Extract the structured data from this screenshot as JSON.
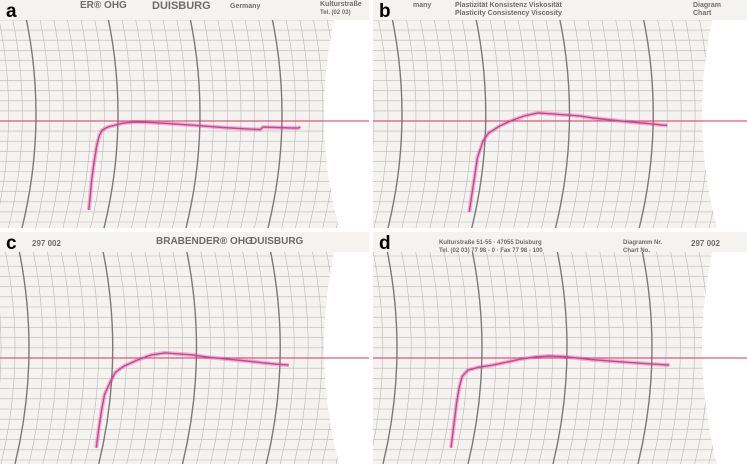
{
  "colors": {
    "paper": "#f4f3f0",
    "grid": "#b9b9b9",
    "grid_major": "#7a7a7a",
    "reference": "#e0305a",
    "trace": "#d43f93",
    "header_text": "#6d6d6d"
  },
  "panels": [
    {
      "label": "a",
      "header": [
        {
          "text": "ER® OHG"
        },
        {
          "text": "DUISBURG"
        },
        {
          "text": "Germany"
        },
        {
          "text": "Kulturstraße"
        },
        {
          "text": "Tel. (02 03)"
        }
      ],
      "chart_data": {
        "type": "line",
        "title": "",
        "xlabel": "",
        "ylabel": "",
        "xlim": [
          0,
          100
        ],
        "ylim": [
          0,
          1000
        ],
        "reference_line": 500,
        "series": [
          {
            "x": [
              10,
              10.5,
              11,
              12,
              13,
              14,
              15,
              17,
              20,
              23,
              27,
              33,
              40,
              50,
              60,
              70,
              74,
              75,
              80,
              85,
              88,
              89
            ],
            "y": [
              60,
              120,
              200,
              300,
              380,
              430,
              455,
              470,
              480,
              490,
              495,
              493,
              487,
              478,
              468,
              460,
              458,
              470,
              468,
              466,
              465,
              470
            ]
          }
        ]
      }
    },
    {
      "label": "b",
      "header": [
        {
          "text": "many"
        },
        {
          "text": "Plastizität  Konsistenz  Viskosität"
        },
        {
          "text": "Plasticity  Consistency  Viscosity"
        },
        {
          "text": "Diagram"
        },
        {
          "text": "Chart"
        }
      ],
      "chart_data": {
        "type": "line",
        "title": "",
        "xlabel": "",
        "ylabel": "",
        "xlim": [
          0,
          100
        ],
        "ylim": [
          0,
          1000
        ],
        "reference_line": 500,
        "series": [
          {
            "x": [
              15,
              16,
              17,
              18,
              20,
              22,
              26,
              30,
              35,
              40,
              45,
              50,
              55,
              60,
              70,
              80,
              85,
              87
            ],
            "y": [
              50,
              140,
              230,
              320,
              400,
              440,
              475,
              500,
              525,
              540,
              535,
              530,
              525,
              515,
              500,
              487,
              480,
              478
            ]
          }
        ]
      }
    },
    {
      "label": "c",
      "header": [
        {
          "text": "297 002"
        },
        {
          "text": "BRABENDER® OHG"
        },
        {
          "text": "DUISBURG"
        }
      ],
      "chart_data": {
        "type": "line",
        "title": "",
        "xlabel": "",
        "ylabel": "",
        "xlim": [
          0,
          100
        ],
        "ylim": [
          0,
          1000
        ],
        "reference_line": 500,
        "series": [
          {
            "x": [
              15,
              16,
              17,
              18,
              20,
              22,
              25,
              30,
              35,
              40,
              45,
              50,
              55,
              60,
              70,
              80,
              85
            ],
            "y": [
              60,
              160,
              250,
              320,
              380,
              430,
              460,
              490,
              515,
              525,
              520,
              515,
              505,
              498,
              485,
              470,
              465
            ]
          }
        ]
      }
    },
    {
      "label": "d",
      "header": [
        {
          "text": "Kulturstraße 51-55  ·  47055 Duisburg"
        },
        {
          "text": "Tel. (02 03) 77 98 - 0  ·  Fax 77 98 - 100"
        },
        {
          "text": "Diagramm Nr."
        },
        {
          "text": "Chart  No."
        },
        {
          "text": "297 002"
        }
      ],
      "chart_data": {
        "type": "line",
        "title": "",
        "xlabel": "",
        "ylabel": "",
        "xlim": [
          0,
          100
        ],
        "ylim": [
          0,
          1000
        ],
        "reference_line": 500,
        "series": [
          {
            "x": [
              10,
              11,
              12,
              13,
              14,
              16,
              20,
              25,
              30,
              35,
              40,
              45,
              50,
              55,
              60,
              70,
              80,
              88
            ],
            "y": [
              60,
              170,
              280,
              360,
              410,
              440,
              455,
              465,
              480,
              495,
              505,
              510,
              507,
              500,
              492,
              482,
              472,
              465
            ]
          }
        ]
      }
    }
  ]
}
